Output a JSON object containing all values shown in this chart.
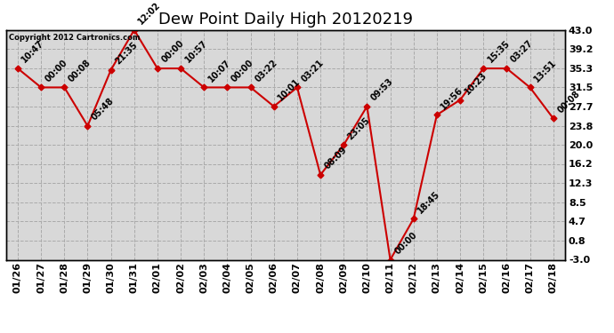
{
  "title": "Dew Point Daily High 20120219",
  "copyright": "Copyright 2012 Cartronics.com",
  "x_labels": [
    "01/26",
    "01/27",
    "01/28",
    "01/29",
    "01/30",
    "01/31",
    "02/01",
    "02/02",
    "02/03",
    "02/04",
    "02/05",
    "02/06",
    "02/07",
    "02/08",
    "02/09",
    "02/10",
    "02/11",
    "02/12",
    "02/13",
    "02/14",
    "02/15",
    "02/16",
    "02/17",
    "02/18"
  ],
  "y_values": [
    35.3,
    31.5,
    31.5,
    23.8,
    35.0,
    43.0,
    35.3,
    35.3,
    31.5,
    31.5,
    31.5,
    27.7,
    31.5,
    14.0,
    20.0,
    27.7,
    -3.0,
    5.2,
    26.0,
    29.0,
    35.3,
    35.3,
    31.5,
    25.3
  ],
  "time_labels": [
    "10:47",
    "00:00",
    "00:08",
    "05:48",
    "21:35",
    "12:02",
    "00:00",
    "10:57",
    "10:07",
    "00:00",
    "03:22",
    "10:01",
    "03:21",
    "08:09",
    "23:05",
    "09:53",
    "00:00",
    "18:45",
    "19:56",
    "10:23",
    "15:35",
    "03:27",
    "13:51",
    "00:08"
  ],
  "y_ticks": [
    -3.0,
    0.8,
    4.7,
    8.5,
    12.3,
    16.2,
    20.0,
    23.8,
    27.7,
    31.5,
    35.3,
    39.2,
    43.0
  ],
  "ylim": [
    -3.0,
    43.0
  ],
  "line_color": "#cc0000",
  "marker_color": "#cc0000",
  "plot_bg_color": "#d8d8d8",
  "fig_bg_color": "#ffffff",
  "grid_color": "#aaaaaa",
  "title_fontsize": 13,
  "tick_fontsize": 8,
  "label_fontsize": 7
}
